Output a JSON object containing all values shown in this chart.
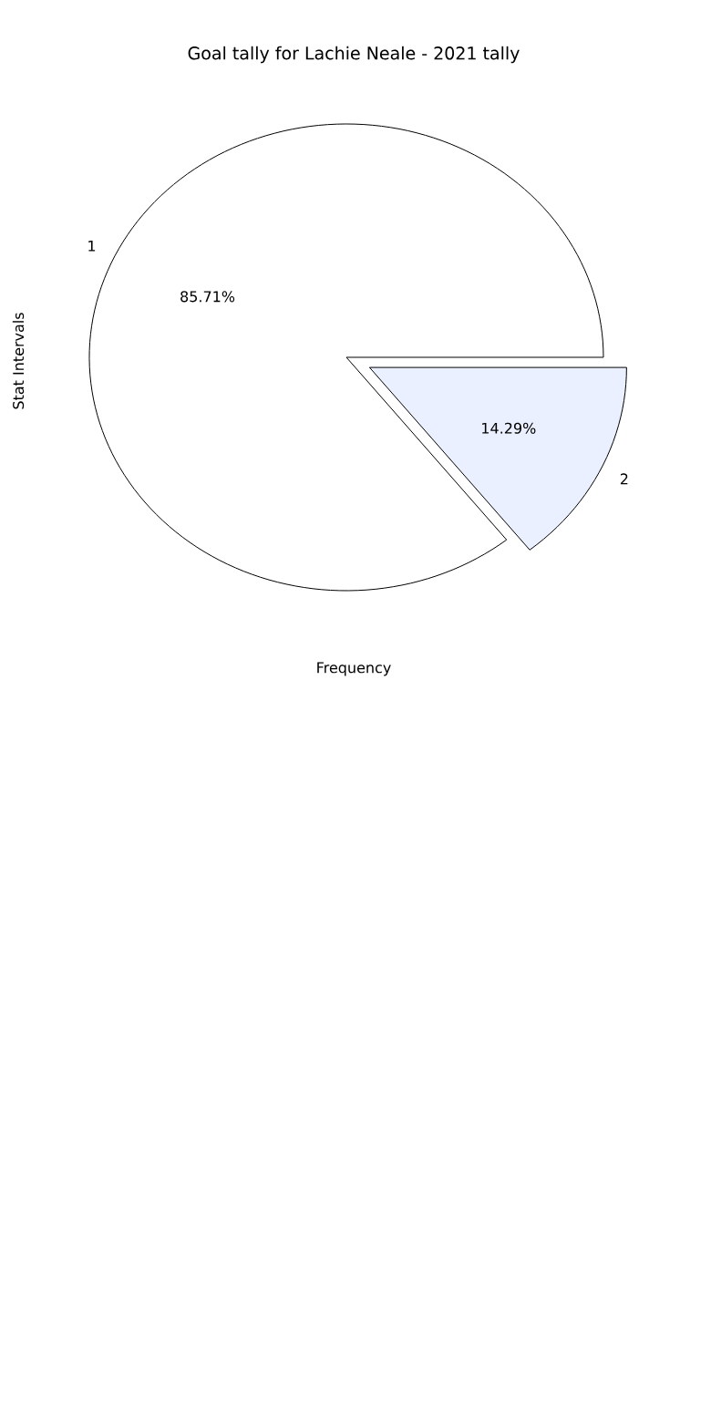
{
  "chart_data": {
    "type": "pie",
    "title": "Goal tally for Lachie Neale - 2021 tally",
    "xlabel": "Frequency",
    "ylabel": "Stat Intervals",
    "categories": [
      "1",
      "2"
    ],
    "values": [
      85.71,
      14.29
    ],
    "value_labels": [
      "85.71%",
      "14.29%"
    ],
    "colors": [
      "#ffffff",
      "#eaf0ff"
    ]
  }
}
